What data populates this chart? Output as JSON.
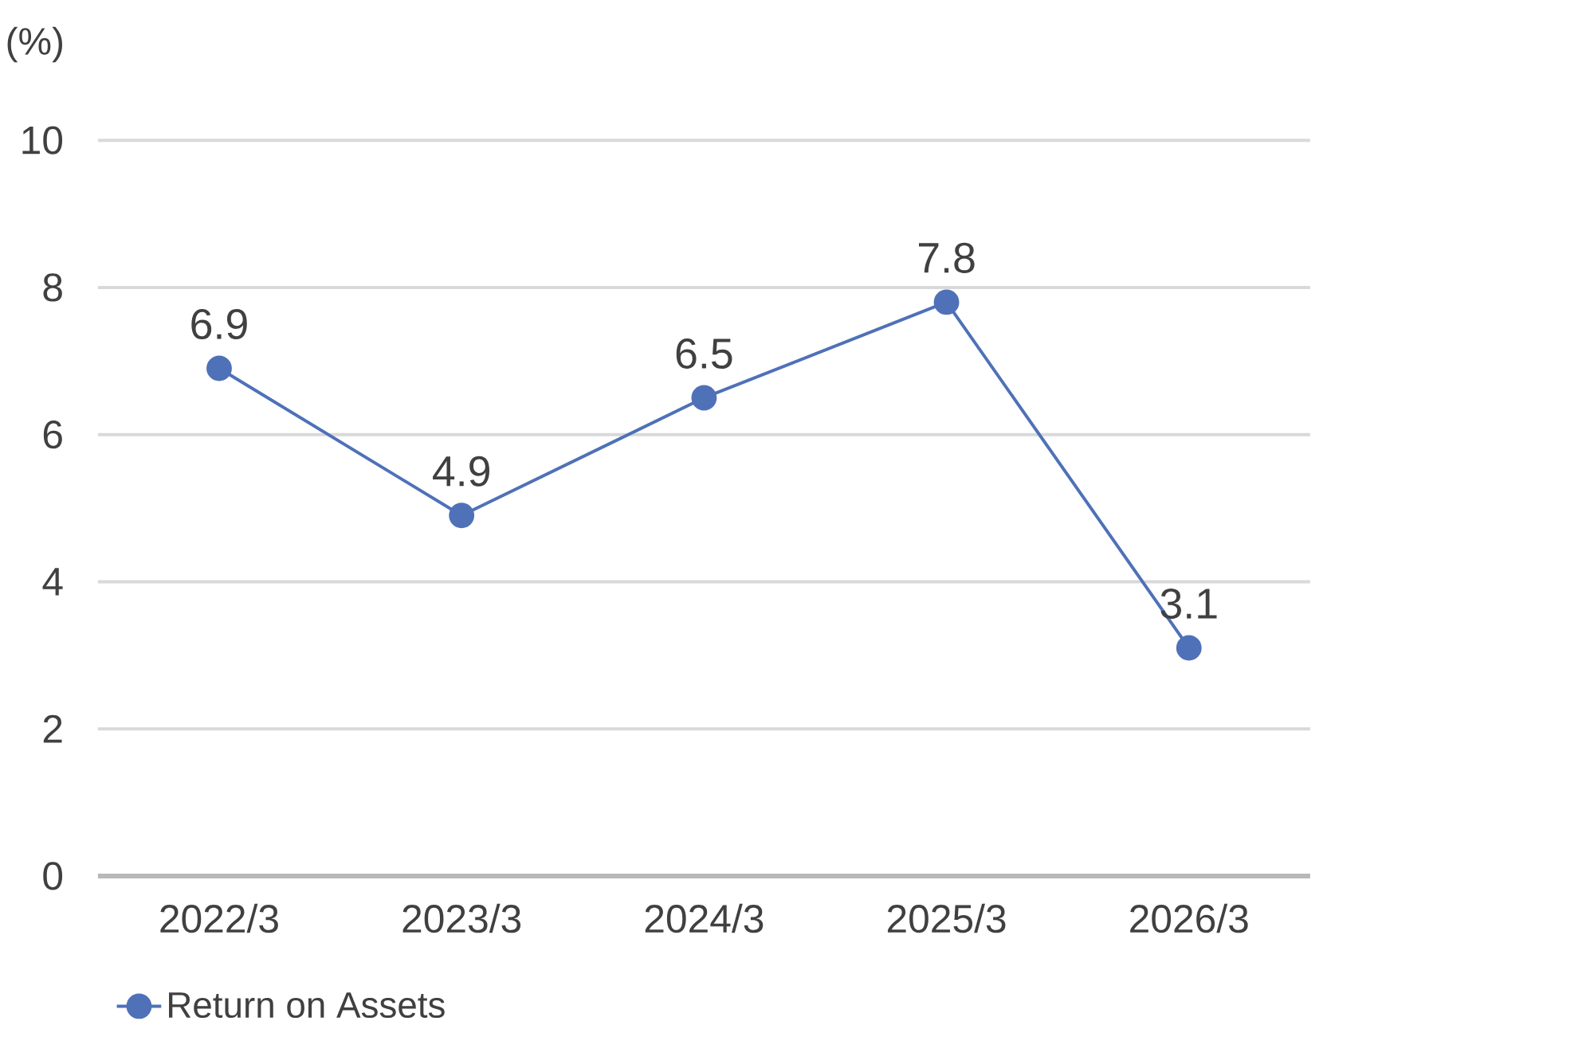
{
  "chart_data": {
    "type": "line",
    "ylabel": "(%)",
    "categories": [
      "2022/3",
      "2023/3",
      "2024/3",
      "2025/3",
      "2026/3"
    ],
    "series": [
      {
        "name": "Return on Assets",
        "color": "#4f71b8",
        "values": [
          6.9,
          4.9,
          6.5,
          7.8,
          3.1
        ]
      }
    ],
    "ylim": [
      0,
      10
    ],
    "yticks": [
      0,
      2,
      4,
      6,
      8,
      10
    ],
    "grid": "y",
    "legend": "bottom left",
    "marker": "circle",
    "line_style": "solid",
    "data_labels": true
  }
}
